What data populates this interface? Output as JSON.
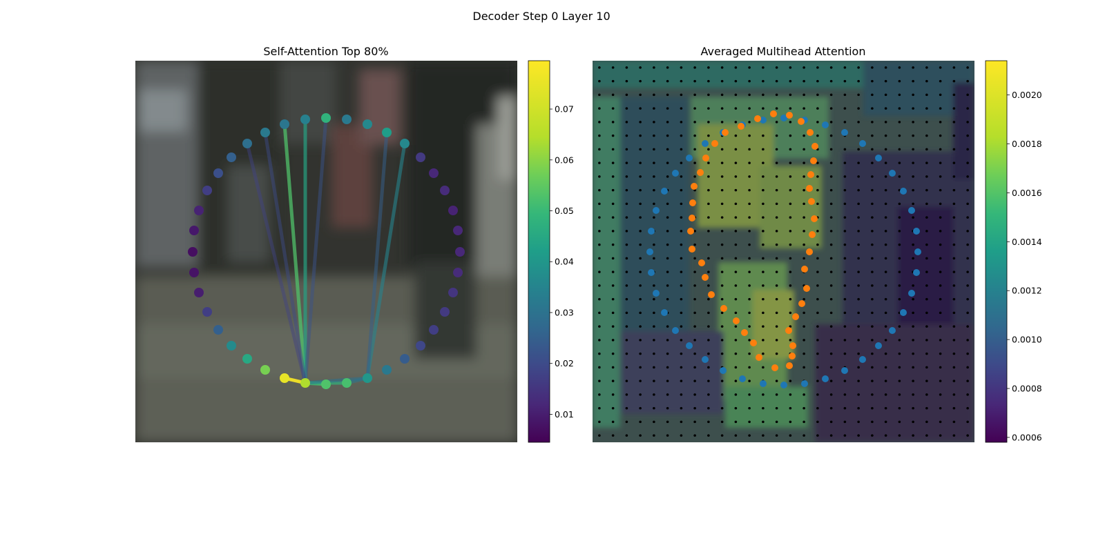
{
  "figure": {
    "title": "Decoder Step 0 Layer 10"
  },
  "chart_data": [
    {
      "type": "network",
      "title": "Self-Attention Top 80%",
      "colorbar": {
        "colormap": "viridis",
        "range": [
          0.0045,
          0.0795
        ],
        "ticks": [
          "0.01",
          "0.02",
          "0.03",
          "0.04",
          "0.05",
          "0.06",
          "0.07"
        ],
        "tick_values": [
          0.01,
          0.02,
          0.03,
          0.04,
          0.05,
          0.06,
          0.07
        ]
      },
      "points": [
        {
          "x": 472,
          "y": 171,
          "v": 0.048
        },
        {
          "x": 502,
          "y": 173,
          "v": 0.032
        },
        {
          "x": 532,
          "y": 180,
          "v": 0.036
        },
        {
          "x": 560,
          "y": 192,
          "v": 0.042
        },
        {
          "x": 586,
          "y": 208,
          "v": 0.036
        },
        {
          "x": 609,
          "y": 228,
          "v": 0.016
        },
        {
          "x": 628,
          "y": 251,
          "v": 0.012
        },
        {
          "x": 644,
          "y": 276,
          "v": 0.013
        },
        {
          "x": 656,
          "y": 305,
          "v": 0.011
        },
        {
          "x": 663,
          "y": 334,
          "v": 0.012
        },
        {
          "x": 666,
          "y": 365,
          "v": 0.012
        },
        {
          "x": 663,
          "y": 395,
          "v": 0.013
        },
        {
          "x": 656,
          "y": 424,
          "v": 0.015
        },
        {
          "x": 644,
          "y": 452,
          "v": 0.016
        },
        {
          "x": 628,
          "y": 478,
          "v": 0.017
        },
        {
          "x": 609,
          "y": 501,
          "v": 0.019
        },
        {
          "x": 586,
          "y": 520,
          "v": 0.024
        },
        {
          "x": 560,
          "y": 536,
          "v": 0.032
        },
        {
          "x": 532,
          "y": 548,
          "v": 0.04
        },
        {
          "x": 502,
          "y": 555,
          "v": 0.052
        },
        {
          "x": 472,
          "y": 557,
          "v": 0.053
        },
        {
          "x": 442,
          "y": 555,
          "v": 0.064
        },
        {
          "x": 412,
          "y": 548,
          "v": 0.075
        },
        {
          "x": 384,
          "y": 536,
          "v": 0.058
        },
        {
          "x": 358,
          "y": 520,
          "v": 0.045
        },
        {
          "x": 335,
          "y": 501,
          "v": 0.037
        },
        {
          "x": 316,
          "y": 478,
          "v": 0.025
        },
        {
          "x": 300,
          "y": 452,
          "v": 0.017
        },
        {
          "x": 288,
          "y": 424,
          "v": 0.01
        },
        {
          "x": 281,
          "y": 395,
          "v": 0.008
        },
        {
          "x": 279,
          "y": 365,
          "v": 0.007
        },
        {
          "x": 281,
          "y": 334,
          "v": 0.009
        },
        {
          "x": 288,
          "y": 305,
          "v": 0.011
        },
        {
          "x": 300,
          "y": 276,
          "v": 0.017
        },
        {
          "x": 316,
          "y": 251,
          "v": 0.021
        },
        {
          "x": 335,
          "y": 228,
          "v": 0.025
        },
        {
          "x": 358,
          "y": 208,
          "v": 0.029
        },
        {
          "x": 384,
          "y": 192,
          "v": 0.032
        },
        {
          "x": 412,
          "y": 180,
          "v": 0.031
        },
        {
          "x": 442,
          "y": 173,
          "v": 0.034
        }
      ],
      "edges": [
        {
          "from": 21,
          "to": 38,
          "v": 0.053
        },
        {
          "from": 21,
          "to": 39,
          "v": 0.044
        },
        {
          "from": 21,
          "to": 0,
          "v": 0.022
        },
        {
          "from": 21,
          "to": 37,
          "v": 0.02
        },
        {
          "from": 21,
          "to": 36,
          "v": 0.018
        },
        {
          "from": 21,
          "to": 22,
          "v": 0.078
        },
        {
          "from": 21,
          "to": 20,
          "v": 0.052
        },
        {
          "from": 21,
          "to": 19,
          "v": 0.048
        },
        {
          "from": 18,
          "to": 4,
          "v": 0.035
        },
        {
          "from": 18,
          "to": 3,
          "v": 0.025
        },
        {
          "from": 18,
          "to": 19,
          "v": 0.032
        },
        {
          "from": 18,
          "to": 21,
          "v": 0.03
        }
      ]
    },
    {
      "type": "heatmap",
      "title": "Averaged Multihead Attention",
      "colorbar": {
        "colormap": "viridis",
        "range": [
          0.00058,
          0.00214
        ],
        "ticks": [
          "0.0006",
          "0.0008",
          "0.0010",
          "0.0012",
          "0.0014",
          "0.0016",
          "0.0018",
          "0.0020"
        ],
        "tick_values": [
          0.0006,
          0.0008,
          0.001,
          0.0012,
          0.0014,
          0.0016,
          0.0018,
          0.002
        ]
      },
      "grid": {
        "cols": 28,
        "rows": 28
      },
      "outer_points_color": "#1f77b4",
      "inner_points_color": "#ff7f0e",
      "outer_points": [
        [
          1105,
          174
        ],
        [
          1135,
          171
        ],
        [
          1165,
          174
        ],
        [
          1195,
          181
        ],
        [
          1223,
          192
        ],
        [
          1249,
          208
        ],
        [
          1272,
          229
        ],
        [
          1292,
          251
        ],
        [
          1308,
          277
        ],
        [
          1320,
          305
        ],
        [
          1327,
          335
        ],
        [
          1329,
          365
        ],
        [
          1327,
          395
        ],
        [
          1320,
          425
        ],
        [
          1308,
          453
        ],
        [
          1292,
          479
        ],
        [
          1272,
          501
        ],
        [
          1249,
          521
        ],
        [
          1223,
          537
        ],
        [
          1195,
          549
        ],
        [
          1165,
          556
        ],
        [
          1135,
          558
        ],
        [
          1105,
          556
        ],
        [
          1075,
          549
        ],
        [
          1047,
          537
        ],
        [
          1021,
          521
        ],
        [
          998,
          501
        ],
        [
          978,
          479
        ],
        [
          962,
          453
        ],
        [
          950,
          425
        ],
        [
          943,
          395
        ],
        [
          941,
          365
        ],
        [
          943,
          335
        ],
        [
          950,
          305
        ],
        [
          962,
          277
        ],
        [
          978,
          251
        ],
        [
          998,
          229
        ],
        [
          1021,
          208
        ],
        [
          1047,
          192
        ],
        [
          1075,
          181
        ]
      ],
      "inner_points": [
        [
          1120,
          165
        ],
        [
          1143,
          167
        ],
        [
          1160,
          176
        ],
        [
          1173,
          192
        ],
        [
          1180,
          212
        ],
        [
          1178,
          233
        ],
        [
          1174,
          253
        ],
        [
          1172,
          273
        ],
        [
          1175,
          292
        ],
        [
          1179,
          317
        ],
        [
          1176,
          340
        ],
        [
          1172,
          365
        ],
        [
          1165,
          390
        ],
        [
          1168,
          418
        ],
        [
          1161,
          440
        ],
        [
          1152,
          459
        ],
        [
          1142,
          479
        ],
        [
          1148,
          501
        ],
        [
          1147,
          516
        ],
        [
          1143,
          530
        ],
        [
          1122,
          533
        ],
        [
          1099,
          518
        ],
        [
          1091,
          497
        ],
        [
          1078,
          482
        ],
        [
          1066,
          465
        ],
        [
          1048,
          447
        ],
        [
          1030,
          427
        ],
        [
          1021,
          402
        ],
        [
          1016,
          381
        ],
        [
          1002,
          361
        ],
        [
          1000,
          335
        ],
        [
          1002,
          316
        ],
        [
          1003,
          294
        ],
        [
          1005,
          270
        ],
        [
          1014,
          250
        ],
        [
          1022,
          229
        ],
        [
          1035,
          208
        ],
        [
          1050,
          192
        ],
        [
          1073,
          183
        ],
        [
          1097,
          172
        ]
      ]
    }
  ]
}
